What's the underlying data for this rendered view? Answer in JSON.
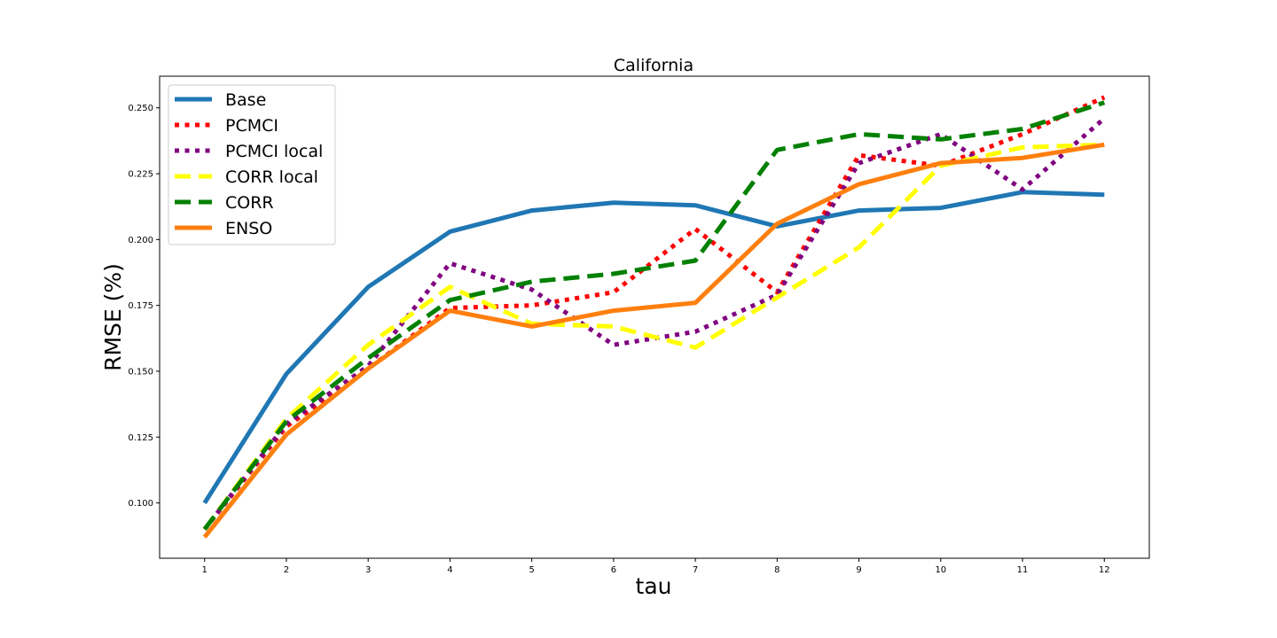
{
  "chart_data": {
    "type": "line",
    "title": "California",
    "xlabel": "tau",
    "ylabel": "RMSE (%)",
    "x": [
      1,
      2,
      3,
      4,
      5,
      6,
      7,
      8,
      9,
      10,
      11,
      12
    ],
    "x_ticks": [
      "1",
      "2",
      "3",
      "4",
      "5",
      "6",
      "7",
      "8",
      "9",
      "10",
      "11",
      "12"
    ],
    "xlim": [
      0.45,
      12.55
    ],
    "ylim": [
      0.079,
      0.262
    ],
    "y_ticks": [
      "0.100",
      "0.125",
      "0.150",
      "0.175",
      "0.200",
      "0.225",
      "0.250"
    ],
    "y_tick_values": [
      0.1,
      0.125,
      0.15,
      0.175,
      0.2,
      0.225,
      0.25
    ],
    "grid": false,
    "legend_position": "upper-left",
    "series": [
      {
        "name": "Base",
        "color": "#1f77b4",
        "style": "solid",
        "values": [
          0.1,
          0.149,
          0.182,
          0.203,
          0.211,
          0.214,
          0.213,
          0.205,
          0.211,
          0.212,
          0.218,
          0.217
        ]
      },
      {
        "name": "PCMCI",
        "color": "#ff0000",
        "style": "dotted",
        "values": [
          0.09,
          0.129,
          0.151,
          0.174,
          0.175,
          0.18,
          0.204,
          0.18,
          0.232,
          0.228,
          0.24,
          0.254
        ]
      },
      {
        "name": "PCMCI local",
        "color": "#800080",
        "style": "dotted",
        "values": [
          0.09,
          0.13,
          0.152,
          0.191,
          0.181,
          0.16,
          0.165,
          0.179,
          0.229,
          0.24,
          0.219,
          0.246
        ]
      },
      {
        "name": "CORR local",
        "color": "#ffff00",
        "style": "dashed",
        "values": [
          0.09,
          0.132,
          0.16,
          0.182,
          0.168,
          0.167,
          0.159,
          0.178,
          0.197,
          0.228,
          0.235,
          0.236
        ]
      },
      {
        "name": "CORR",
        "color": "#008000",
        "style": "dashed",
        "values": [
          0.09,
          0.131,
          0.155,
          0.177,
          0.184,
          0.187,
          0.192,
          0.234,
          0.24,
          0.238,
          0.242,
          0.252
        ]
      },
      {
        "name": "ENSO",
        "color": "#ff7f0e",
        "style": "solid",
        "values": [
          0.087,
          0.126,
          0.151,
          0.173,
          0.167,
          0.173,
          0.176,
          0.206,
          0.221,
          0.229,
          0.231,
          0.236
        ]
      }
    ]
  }
}
